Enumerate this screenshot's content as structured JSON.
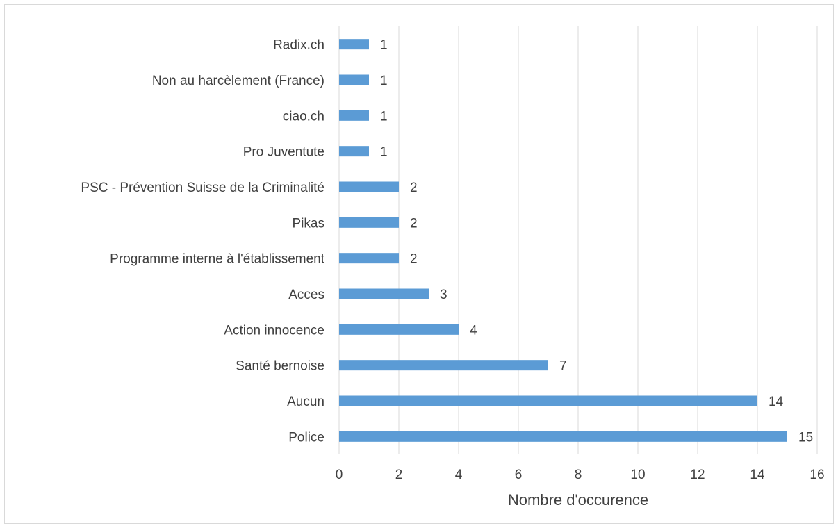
{
  "chart_data": {
    "type": "bar",
    "orientation": "horizontal",
    "categories": [
      "Radix.ch",
      "Non au harcèlement (France)",
      "ciao.ch",
      "Pro Juventute",
      "PSC - Prévention Suisse de la Criminalité",
      "Pikas",
      "Programme interne à l'établissement",
      "Acces",
      "Action innocence",
      "Santé bernoise",
      "Aucun",
      "Police"
    ],
    "values": [
      1,
      1,
      1,
      1,
      2,
      2,
      2,
      3,
      4,
      7,
      14,
      15
    ],
    "title": "",
    "xlabel": "Nombre d'occurence",
    "ylabel": "",
    "xlim": [
      0,
      16
    ],
    "x_ticks": [
      "0",
      "2",
      "4",
      "6",
      "8",
      "10",
      "12",
      "14",
      "16"
    ],
    "grid": true,
    "data_labels": true,
    "bar_color": "#5b9bd5",
    "grid_color": "#d9d9d9",
    "text_color": "#404040"
  }
}
